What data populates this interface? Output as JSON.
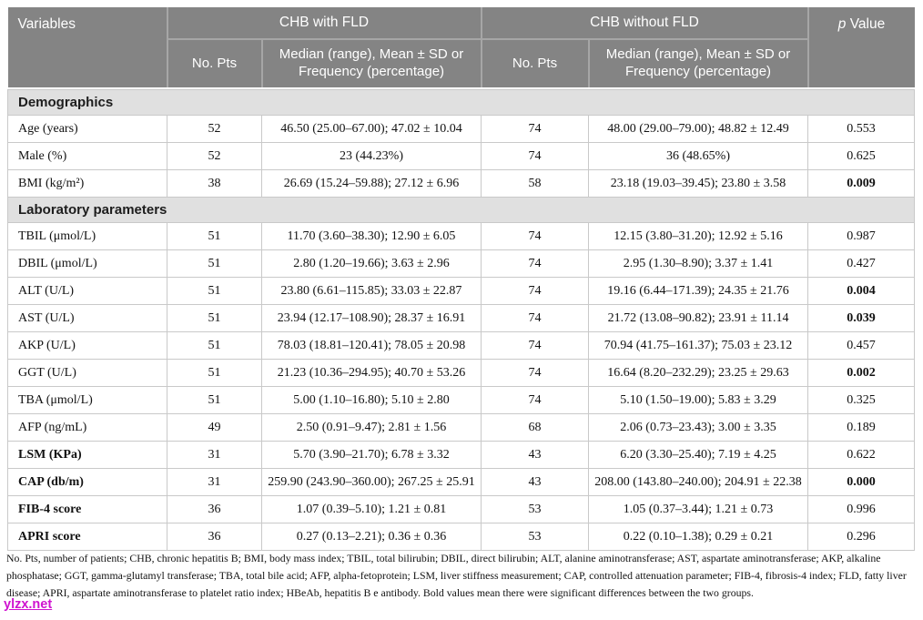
{
  "colors": {
    "header_bg": "#848484",
    "header_divider": "#a6a6a6",
    "section_bg": "#e0e0e0",
    "row_border": "#c9c9c9",
    "header_text": "#ffffff",
    "body_text": "#121212",
    "watermark": "#cc00cc"
  },
  "table": {
    "header": {
      "variables_label": "Variables",
      "group1_label": "CHB with FLD",
      "group2_label": "CHB without FLD",
      "p_italic": "p",
      "p_rest": " Value",
      "no_pts_label": "No. Pts",
      "median_label": "Median (range), Mean ± SD or Frequency (percentage)"
    },
    "sections": [
      {
        "title": "Demographics",
        "rows": [
          {
            "variable": "Age (years)",
            "bold_variable": false,
            "n1": "52",
            "v1": "46.50 (25.00–67.00); 47.02 ± 10.04",
            "n2": "74",
            "v2": "48.00 (29.00–79.00); 48.82 ± 12.49",
            "p": "0.553",
            "bold_p": false
          },
          {
            "variable": "Male (%)",
            "bold_variable": false,
            "n1": "52",
            "v1": "23 (44.23%)",
            "n2": "74",
            "v2": "36 (48.65%)",
            "p": "0.625",
            "bold_p": false
          },
          {
            "variable": "BMI (kg/m²)",
            "bold_variable": false,
            "n1": "38",
            "v1": "26.69 (15.24–59.88); 27.12 ± 6.96",
            "n2": "58",
            "v2": "23.18 (19.03–39.45); 23.80 ± 3.58",
            "p": "0.009",
            "bold_p": true
          }
        ]
      },
      {
        "title": "Laboratory parameters",
        "rows": [
          {
            "variable": "TBIL (μmol/L)",
            "bold_variable": false,
            "n1": "51",
            "v1": "11.70 (3.60–38.30); 12.90 ± 6.05",
            "n2": "74",
            "v2": "12.15 (3.80–31.20); 12.92 ± 5.16",
            "p": "0.987",
            "bold_p": false
          },
          {
            "variable": "DBIL (μmol/L)",
            "bold_variable": false,
            "n1": "51",
            "v1": "2.80 (1.20–19.66); 3.63 ± 2.96",
            "n2": "74",
            "v2": "2.95 (1.30–8.90); 3.37 ± 1.41",
            "p": "0.427",
            "bold_p": false
          },
          {
            "variable": "ALT (U/L)",
            "bold_variable": false,
            "n1": "51",
            "v1": "23.80 (6.61–115.85); 33.03 ± 22.87",
            "n2": "74",
            "v2": "19.16 (6.44–171.39); 24.35 ± 21.76",
            "p": "0.004",
            "bold_p": true
          },
          {
            "variable": "AST (U/L)",
            "bold_variable": false,
            "n1": "51",
            "v1": "23.94 (12.17–108.90); 28.37 ± 16.91",
            "n2": "74",
            "v2": "21.72 (13.08–90.82); 23.91 ± 11.14",
            "p": "0.039",
            "bold_p": true
          },
          {
            "variable": "AKP (U/L)",
            "bold_variable": false,
            "n1": "51",
            "v1": "78.03 (18.81–120.41); 78.05 ± 20.98",
            "n2": "74",
            "v2": "70.94 (41.75–161.37); 75.03 ± 23.12",
            "p": "0.457",
            "bold_p": false
          },
          {
            "variable": "GGT (U/L)",
            "bold_variable": false,
            "n1": "51",
            "v1": "21.23 (10.36–294.95); 40.70 ± 53.26",
            "n2": "74",
            "v2": "16.64 (8.20–232.29); 23.25 ± 29.63",
            "p": "0.002",
            "bold_p": true
          },
          {
            "variable": "TBA (μmol/L)",
            "bold_variable": false,
            "n1": "51",
            "v1": "5.00 (1.10–16.80); 5.10 ± 2.80",
            "n2": "74",
            "v2": "5.10 (1.50–19.00); 5.83 ± 3.29",
            "p": "0.325",
            "bold_p": false
          },
          {
            "variable": "AFP (ng/mL)",
            "bold_variable": false,
            "n1": "49",
            "v1": "2.50 (0.91–9.47); 2.81 ± 1.56",
            "n2": "68",
            "v2": "2.06 (0.73–23.43); 3.00 ± 3.35",
            "p": "0.189",
            "bold_p": false
          },
          {
            "variable": "LSM (KPa)",
            "bold_variable": true,
            "n1": "31",
            "v1": "5.70 (3.90–21.70); 6.78 ± 3.32",
            "n2": "43",
            "v2": "6.20 (3.30–25.40); 7.19 ± 4.25",
            "p": "0.622",
            "bold_p": false
          },
          {
            "variable": "CAP (db/m)",
            "bold_variable": true,
            "n1": "31",
            "v1": "259.90 (243.90–360.00); 267.25 ± 25.91",
            "n2": "43",
            "v2": "208.00 (143.80–240.00); 204.91 ± 22.38",
            "p": "0.000",
            "bold_p": true
          },
          {
            "variable": "FIB-4 score",
            "bold_variable": true,
            "n1": "36",
            "v1": "1.07 (0.39–5.10); 1.21 ± 0.81",
            "n2": "53",
            "v2": "1.05 (0.37–3.44); 1.21 ± 0.73",
            "p": "0.996",
            "bold_p": false
          },
          {
            "variable": "APRI score",
            "bold_variable": true,
            "n1": "36",
            "v1": "0.27 (0.13–2.21); 0.36 ± 0.36",
            "n2": "53",
            "v2": "0.22 (0.10–1.38); 0.29 ± 0.21",
            "p": "0.296",
            "bold_p": false
          }
        ]
      }
    ]
  },
  "footnote": "No. Pts, number of patients; CHB, chronic hepatitis B; BMI, body mass index; TBIL, total bilirubin; DBIL, direct bilirubin; ALT, alanine aminotransferase; AST, aspartate aminotransferase; AKP, alkaline phosphatase; GGT, gamma-glutamyl transferase; TBA, total bile acid; AFP, alpha-fetoprotein; LSM, liver stiffness measurement; CAP, controlled attenuation parameter; FIB-4, fibrosis-4 index; FLD, fatty liver disease; APRI, aspartate aminotransferase to platelet ratio index; HBeAb, hepatitis B e antibody. Bold values mean there were significant differences between the two groups.",
  "watermark": "ylzx.net"
}
